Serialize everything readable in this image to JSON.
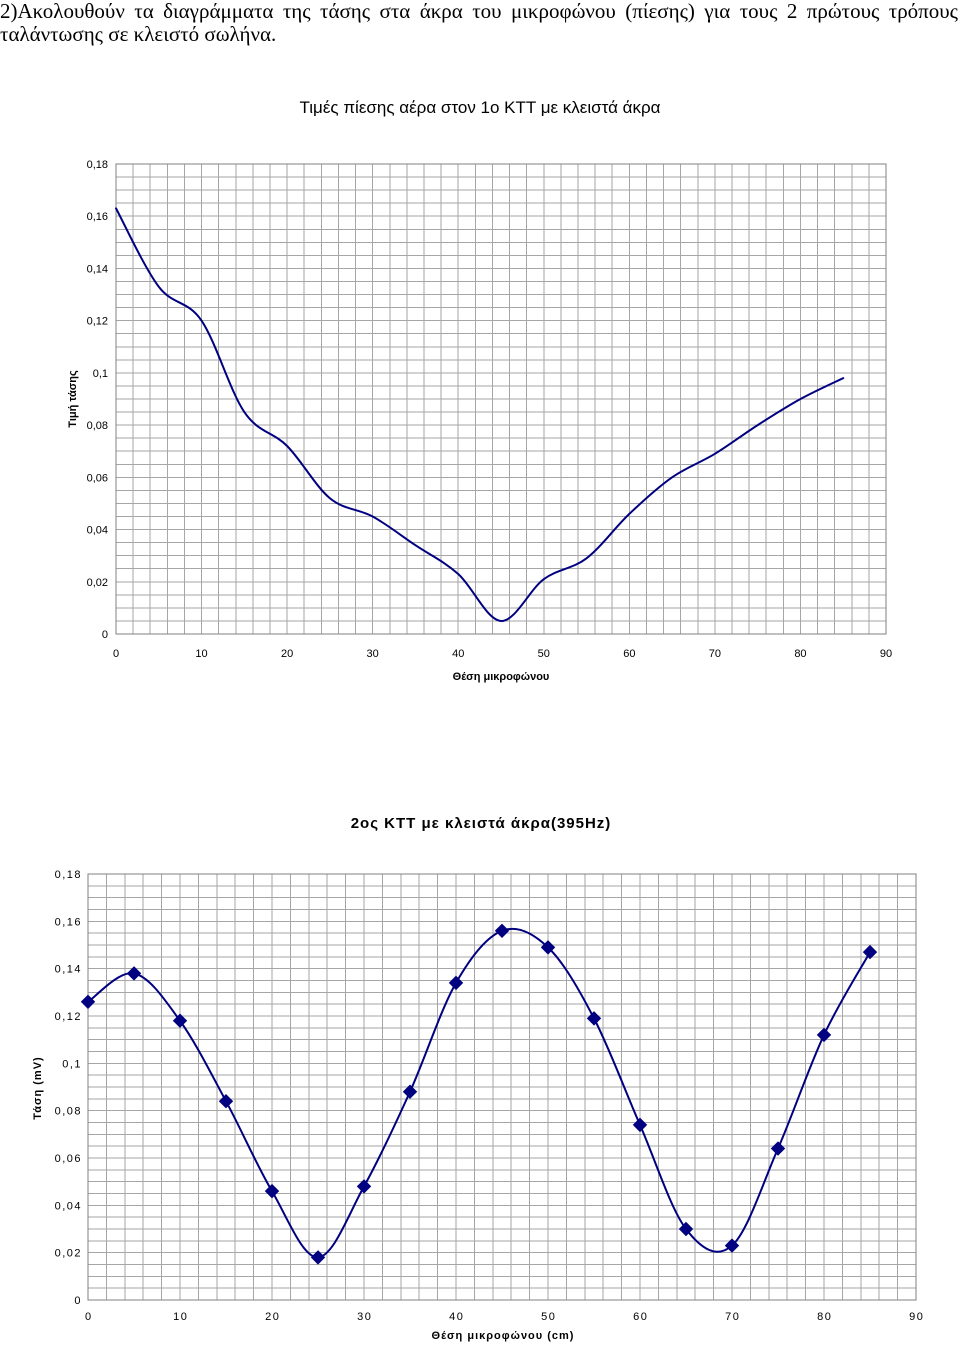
{
  "intro": {
    "text": "2)Ακολουθούν τα διαγράμματα της τάσης στα άκρα του μικροφώνου (πίεσης) για τους 2 πρώτους τρόπους ταλάντωσης σε κλειστό σωλήνα."
  },
  "colors": {
    "series_line": "#000080",
    "marker": "#000080",
    "gridline": "#a6a6a6",
    "plot_border": "#808080"
  },
  "chart_data": [
    {
      "type": "line",
      "title": "Τιμές πίεσης αέρα στον 1ο ΚΤΤ με κλειστά άκρα",
      "xlabel": "Θέση μικροφώνου",
      "ylabel": "Τιμή τάσης",
      "x_tick_labels": [
        "0",
        "10",
        "20",
        "30",
        "40",
        "50",
        "60",
        "70",
        "80",
        "90"
      ],
      "y_tick_labels": [
        "0",
        "0,02",
        "0,04",
        "0,06",
        "0,08",
        "0,1",
        "0,12",
        "0,14",
        "0,16",
        "0,18"
      ],
      "xlim": [
        0,
        90
      ],
      "ylim": [
        0,
        0.18
      ],
      "grid": true,
      "smooth": true,
      "markers": false,
      "x": [
        0,
        5,
        10,
        15,
        20,
        25,
        30,
        35,
        40,
        45,
        50,
        55,
        60,
        65,
        70,
        75,
        80,
        85
      ],
      "y": [
        0.163,
        0.133,
        0.12,
        0.085,
        0.072,
        0.052,
        0.045,
        0.034,
        0.023,
        0.005,
        0.021,
        0.029,
        0.046,
        0.06,
        0.069,
        0.08,
        0.09,
        0.098
      ]
    },
    {
      "type": "line",
      "title": "2ος ΚΤΤ με κλειστά άκρα(395Hz)",
      "xlabel": "Θέση μικροφώνου (cm)",
      "ylabel": "Τάση (mV)",
      "x_tick_labels": [
        "0",
        "10",
        "20",
        "30",
        "40",
        "50",
        "60",
        "70",
        "80",
        "90"
      ],
      "y_tick_labels": [
        "0",
        "0,02",
        "0,04",
        "0,06",
        "0,08",
        "0,1",
        "0,12",
        "0,14",
        "0,16",
        "0,18"
      ],
      "xlim": [
        0,
        90
      ],
      "ylim": [
        0,
        0.18
      ],
      "grid": true,
      "smooth": true,
      "markers": true,
      "x": [
        0,
        5,
        10,
        15,
        20,
        25,
        30,
        35,
        40,
        45,
        50,
        55,
        60,
        65,
        70,
        75,
        80,
        85
      ],
      "y": [
        0.126,
        0.138,
        0.118,
        0.084,
        0.046,
        0.018,
        0.048,
        0.088,
        0.134,
        0.156,
        0.149,
        0.119,
        0.074,
        0.03,
        0.023,
        0.064,
        0.112,
        0.147
      ]
    }
  ]
}
